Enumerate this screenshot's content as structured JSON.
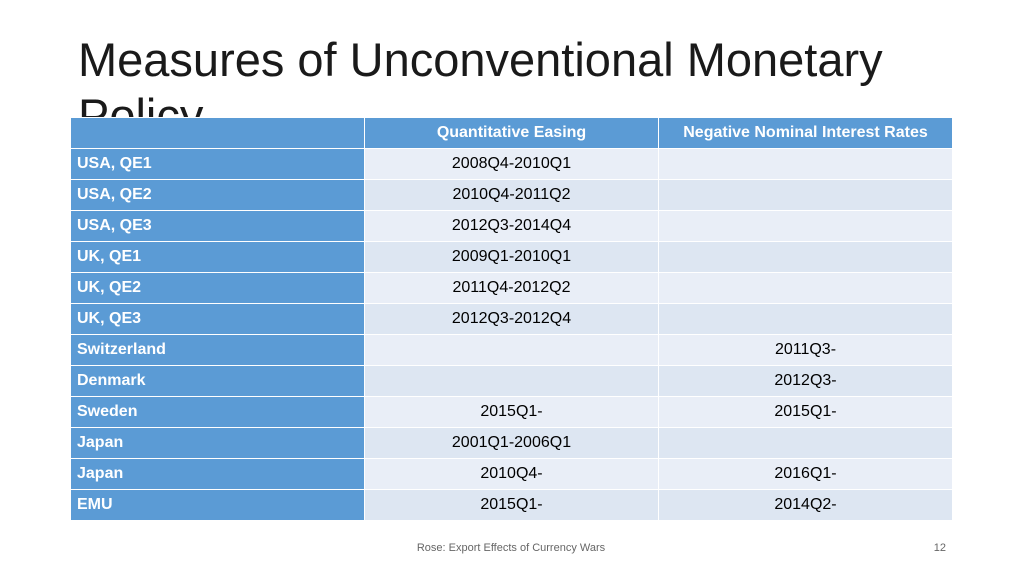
{
  "header": {
    "title": "Measures of Unconventional Monetary Policy"
  },
  "table": {
    "columns": [
      null,
      "Quantitative Easing",
      "Negative Nominal Interest Rates"
    ],
    "rows": [
      [
        "USA, QE1",
        "2008Q4-2010Q1",
        null
      ],
      [
        "USA, QE2",
        "2010Q4-2011Q2",
        null
      ],
      [
        "USA, QE3",
        "2012Q3-2014Q4",
        null
      ],
      [
        "UK, QE1",
        "2009Q1-2010Q1",
        null
      ],
      [
        "UK, QE2",
        "2011Q4-2012Q2",
        null
      ],
      [
        "UK, QE3",
        "2012Q3-2012Q4",
        null
      ],
      [
        "Switzerland",
        null,
        "2011Q3-"
      ],
      [
        "Denmark",
        null,
        "2012Q3-"
      ],
      [
        "Sweden",
        "2015Q1-",
        "2015Q1-"
      ],
      [
        "Japan",
        "2001Q1-2006Q1",
        null
      ],
      [
        "Japan",
        "2010Q4-",
        "2016Q1-"
      ],
      [
        "EMU",
        "2015Q1-",
        "2014Q2-"
      ]
    ]
  },
  "footer": {
    "source": "Rose: Export Effects of Currency Wars",
    "page": "12"
  }
}
